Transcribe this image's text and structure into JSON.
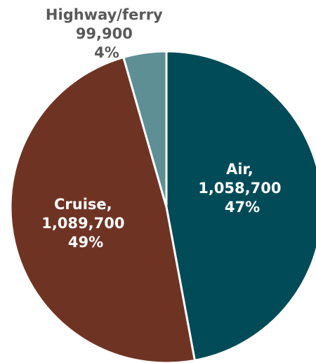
{
  "chart_data": {
    "type": "pie",
    "title": "",
    "slices": [
      {
        "name": "Air",
        "value": 1058700,
        "percent": 47,
        "color": "#004b57",
        "label_line1": "Air,",
        "label_line2": "1,058,700",
        "label_line3": "47%"
      },
      {
        "name": "Cruise",
        "value": 1089700,
        "percent": 49,
        "color": "#6f3324",
        "label_line1": "Cruise,",
        "label_line2": "1,089,700",
        "label_line3": "49%"
      },
      {
        "name": "Highway/ferry",
        "value": 99900,
        "percent": 4,
        "color": "#5d8f95",
        "label_line1": "Highway/ferry",
        "label_line2": "99,900",
        "label_line3": "4%"
      }
    ],
    "start_angle": "12 o'clock",
    "direction": "clockwise",
    "legend": "none",
    "label_colors": {
      "inside": "#ffffff",
      "outside": "#595959"
    }
  }
}
